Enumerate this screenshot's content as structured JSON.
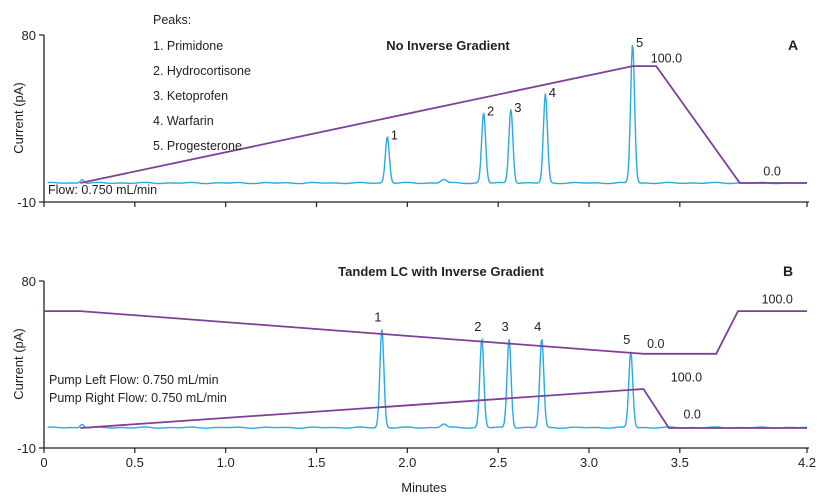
{
  "chart_data": [
    {
      "type": "line",
      "panel": "A",
      "title": "No Inverse Gradient",
      "ylabel": "Current (pA)",
      "xlim": [
        0,
        4.2
      ],
      "ylim": [
        -10,
        80
      ],
      "yticks": [
        "80",
        "-10"
      ],
      "legend": {
        "title": "Peaks:",
        "items": [
          "1. Primidone",
          "2. Hydrocortisone",
          "3. Ketoprofen",
          "4. Warfarin",
          "5. Progesterone"
        ]
      },
      "flow_label": "Flow: 0.750 mL/min",
      "peaks": [
        {
          "label": "1",
          "x": 1.89,
          "y": 25
        },
        {
          "label": "2",
          "x": 2.42,
          "y": 38
        },
        {
          "label": "3",
          "x": 2.57,
          "y": 40
        },
        {
          "label": "4",
          "x": 2.76,
          "y": 48
        },
        {
          "label": "5",
          "x": 3.24,
          "y": 75
        }
      ],
      "gradient_profiles": [
        {
          "points": [
            [
              0.2,
              0
            ],
            [
              3.24,
              63
            ],
            [
              3.37,
              63
            ],
            [
              3.83,
              0
            ],
            [
              4.2,
              0
            ]
          ],
          "labels": [
            {
              "text": "100.0",
              "x": 3.34,
              "y": 65
            },
            {
              "text": "0.0",
              "x": 3.96,
              "y": 4
            }
          ]
        }
      ]
    },
    {
      "type": "line",
      "panel": "B",
      "title": "Tandem LC with Inverse Gradient",
      "xlabel": "Minutes",
      "ylabel": "Current (pA)",
      "xlim": [
        0,
        4.2
      ],
      "ylim": [
        -10,
        80
      ],
      "xticks": [
        "0",
        "0.5",
        "1.0",
        "1.5",
        "2.0",
        "2.5",
        "3.0",
        "3.5",
        "4.2"
      ],
      "yticks": [
        "80",
        "-10"
      ],
      "flow_labels": [
        "Pump Left Flow: 0.750 mL/min",
        "Pump Right Flow: 0.750 mL/min"
      ],
      "peaks": [
        {
          "label": "1",
          "x": 1.86,
          "y": 53
        },
        {
          "label": "2",
          "x": 2.41,
          "y": 48
        },
        {
          "label": "3",
          "x": 2.56,
          "y": 48
        },
        {
          "label": "4",
          "x": 2.74,
          "y": 48
        },
        {
          "label": "5",
          "x": 3.23,
          "y": 41
        }
      ],
      "gradient_profiles": [
        {
          "points": [
            [
              0,
              63
            ],
            [
              0.2,
              63
            ],
            [
              3.3,
              40
            ],
            [
              3.7,
              40
            ],
            [
              3.82,
              63
            ],
            [
              4.2,
              63
            ]
          ],
          "labels": [
            {
              "text": "0.0",
              "x": 3.32,
              "y": 43
            },
            {
              "text": "100.0",
              "x": 3.95,
              "y": 67
            }
          ]
        },
        {
          "points": [
            [
              0.2,
              0
            ],
            [
              3.3,
              21
            ],
            [
              3.44,
              0
            ],
            [
              4.2,
              0
            ]
          ],
          "labels": [
            {
              "text": "100.0",
              "x": 3.45,
              "y": 25
            },
            {
              "text": "0.0",
              "x": 3.52,
              "y": 5
            }
          ]
        }
      ]
    }
  ],
  "colors": {
    "chromatogram": "#29aae1",
    "gradient": "#7f3f98",
    "axis": "#231f20"
  }
}
